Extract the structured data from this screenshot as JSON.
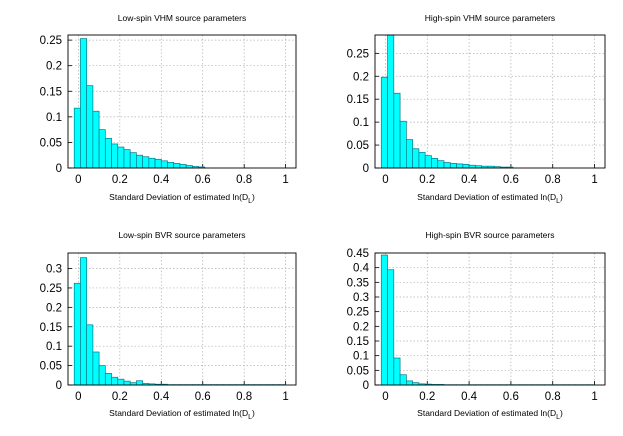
{
  "chart_data": [
    {
      "type": "bar",
      "title": "Low-spin VHM source parameters",
      "xlabel_main": "Standard Deviation of estimated ln(D",
      "xlabel_sub": "L",
      "xlabel_end": ")",
      "xlim": [
        -0.05,
        1.05
      ],
      "ylim": [
        0,
        0.26
      ],
      "xticks": [
        "0",
        "0.2",
        "0.4",
        "0.6",
        "0.8",
        "1"
      ],
      "yticks": [
        "0",
        "0.05",
        "0.1",
        "0.15",
        "0.2",
        "0.25"
      ],
      "bin_width": 0.03,
      "bin_starts": [
        -0.02,
        0.01,
        0.04,
        0.07,
        0.1,
        0.13,
        0.16,
        0.19,
        0.22,
        0.25,
        0.28,
        0.31,
        0.34,
        0.37,
        0.4,
        0.43,
        0.46,
        0.49,
        0.52,
        0.55,
        0.58
      ],
      "values": [
        0.117,
        0.253,
        0.161,
        0.111,
        0.075,
        0.058,
        0.047,
        0.041,
        0.036,
        0.03,
        0.025,
        0.022,
        0.019,
        0.017,
        0.014,
        0.011,
        0.009,
        0.007,
        0.005,
        0.003,
        0.002
      ],
      "grid": true
    },
    {
      "type": "bar",
      "title": "High-spin VHM source parameters",
      "xlabel_main": "Standard Deviation of estimated ln(D",
      "xlabel_sub": "L",
      "xlabel_end": ")",
      "xlim": [
        -0.05,
        1.05
      ],
      "ylim": [
        0,
        0.29
      ],
      "xticks": [
        "0",
        "0.2",
        "0.4",
        "0.6",
        "0.8",
        "1"
      ],
      "yticks": [
        "0",
        "0.05",
        "0.1",
        "0.15",
        "0.2",
        "0.25"
      ],
      "bin_width": 0.03,
      "bin_starts": [
        -0.02,
        0.01,
        0.04,
        0.07,
        0.1,
        0.13,
        0.16,
        0.19,
        0.22,
        0.25,
        0.28,
        0.31,
        0.34,
        0.37,
        0.4,
        0.43,
        0.46,
        0.49,
        0.52,
        0.55,
        0.58
      ],
      "values": [
        0.198,
        0.29,
        0.163,
        0.102,
        0.062,
        0.042,
        0.034,
        0.027,
        0.021,
        0.016,
        0.012,
        0.01,
        0.009,
        0.008,
        0.006,
        0.005,
        0.004,
        0.004,
        0.003,
        0.002,
        0.002
      ],
      "grid": true
    },
    {
      "type": "bar",
      "title": "Low-spin BVR source parameters",
      "xlabel_main": "Standard Deviation of estimated ln(D",
      "xlabel_sub": "L",
      "xlabel_end": ")",
      "xlim": [
        -0.05,
        1.05
      ],
      "ylim": [
        0,
        0.34
      ],
      "xticks": [
        "0",
        "0.2",
        "0.4",
        "0.6",
        "0.8",
        "1"
      ],
      "yticks": [
        "0",
        "0.05",
        "0.1",
        "0.15",
        "0.2",
        "0.25",
        "0.3"
      ],
      "bin_width": 0.03,
      "bin_starts": [
        -0.02,
        0.01,
        0.04,
        0.07,
        0.1,
        0.13,
        0.16,
        0.19,
        0.22,
        0.25,
        0.28,
        0.31,
        0.34,
        0.37,
        0.4,
        0.43,
        0.46,
        0.49,
        0.52,
        0.55,
        0.58,
        0.61,
        0.64,
        0.67,
        0.7,
        0.73,
        0.76,
        0.79,
        0.82,
        0.85,
        0.88,
        0.91,
        0.94,
        0.97
      ],
      "values": [
        0.262,
        0.328,
        0.155,
        0.085,
        0.05,
        0.03,
        0.02,
        0.015,
        0.01,
        0.006,
        0.011,
        0.004,
        0.003,
        0.002,
        0.002,
        0.001,
        0.001,
        0.001,
        0.001,
        0.001,
        0.001,
        0.001,
        0.001,
        0.001,
        0.001,
        0.001,
        0.001,
        0.001,
        0.001,
        0.001,
        0.001,
        0.001,
        0.001,
        0.001
      ],
      "grid": true
    },
    {
      "type": "bar",
      "title": "High-spin BVR source parameters",
      "xlabel_main": "Standard Deviation of estimated ln(D",
      "xlabel_sub": "L",
      "xlabel_end": ")",
      "xlim": [
        -0.05,
        1.05
      ],
      "ylim": [
        0,
        0.45
      ],
      "xticks": [
        "0",
        "0.2",
        "0.4",
        "0.6",
        "0.8",
        "1"
      ],
      "yticks": [
        "0",
        "0.05",
        "0.1",
        "0.15",
        "0.2",
        "0.25",
        "0.3",
        "0.35",
        "0.4",
        "0.45"
      ],
      "bin_width": 0.03,
      "bin_starts": [
        -0.02,
        0.01,
        0.04,
        0.07,
        0.1,
        0.13,
        0.16,
        0.19,
        0.22,
        0.25,
        0.28,
        0.31,
        0.34,
        0.37,
        0.4,
        0.43,
        0.46,
        0.49,
        0.52,
        0.55,
        0.58,
        0.61,
        0.64,
        0.67,
        0.7,
        0.73,
        0.76,
        0.79,
        0.82,
        0.85,
        0.88,
        0.91,
        0.94,
        0.97
      ],
      "values": [
        0.443,
        0.393,
        0.092,
        0.035,
        0.014,
        0.008,
        0.004,
        0.003,
        0.002,
        0.002,
        0.001,
        0.001,
        0.001,
        0.001,
        0.001,
        0.001,
        0.001,
        0.001,
        0.001,
        0.001,
        0.001,
        0.001,
        0.001,
        0.001,
        0.001,
        0.001,
        0.001,
        0.001,
        0.001,
        0.001,
        0.001,
        0.001,
        0.001,
        0.001
      ],
      "grid": true
    }
  ],
  "colors": {
    "bar_fill": "#00ffff",
    "bar_edge": "#007d8c",
    "grid": "#b0b0b0",
    "axis": "#000000"
  }
}
